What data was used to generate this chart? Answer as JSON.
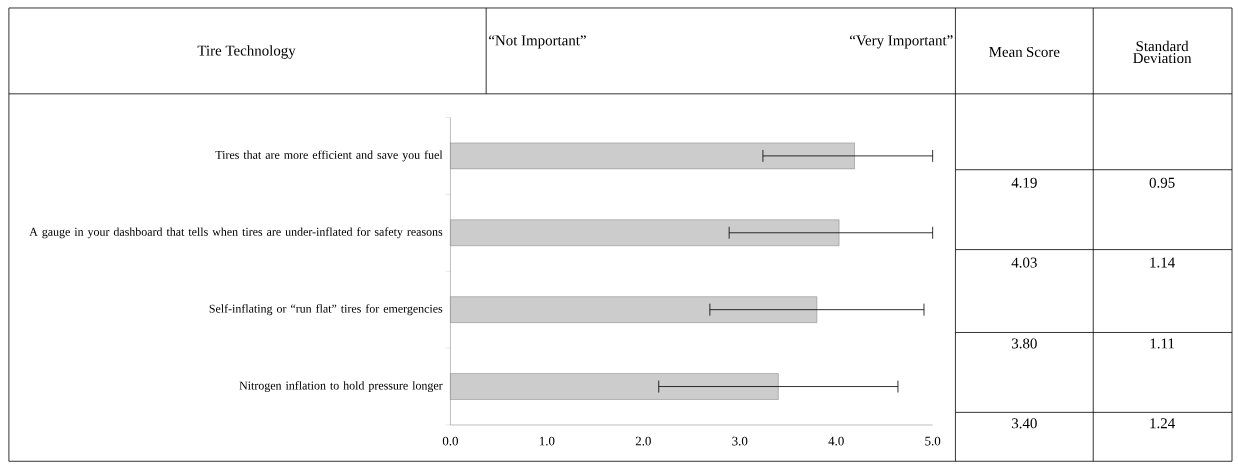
{
  "chart_data": {
    "type": "bar",
    "orientation": "horizontal",
    "categories": [
      "Tires that are more efficient and save you fuel",
      "A gauge in your dashboard that tells when tires are under-inflated for safety reasons",
      "Self-inflating or “run flat” tires for emergencies",
      "Nitrogen inflation to hold pressure longer"
    ],
    "values": [
      4.19,
      4.03,
      3.8,
      3.4
    ],
    "errors": [
      [
        3.24,
        5.0
      ],
      [
        2.89,
        5.0
      ],
      [
        2.69,
        4.91
      ],
      [
        2.16,
        4.64
      ]
    ],
    "value_labels": [
      "4.19",
      "4.03",
      "3.80",
      "3.40"
    ],
    "color": "#cccccc",
    "xlim": [
      0,
      5
    ],
    "xticks": [
      {
        "value": 0,
        "label": "0.0"
      },
      {
        "value": 1,
        "label": "1.0"
      },
      {
        "value": 2,
        "label": "2.0"
      },
      {
        "value": 3,
        "label": "3.0"
      },
      {
        "value": 4,
        "label": "4.0"
      },
      {
        "value": 5,
        "label": "5.0"
      }
    ],
    "annotations": [
      "Tire Technology",
      "“Not Important”",
      "“Very Important”",
      "Mean Score",
      "Standard Deviation",
      "0.95",
      "1.14",
      "1.11",
      "1.24"
    ]
  }
}
